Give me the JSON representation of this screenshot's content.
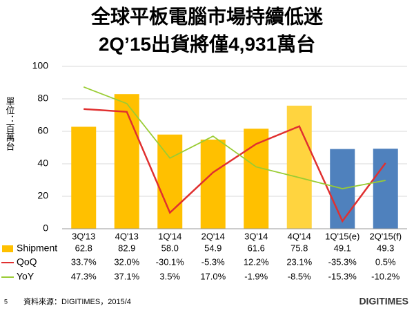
{
  "chart_data": {
    "type": "bar_line",
    "title": "全球平板電腦市場持續低迷",
    "subtitle": "2Q’15出貨將僅4,931萬台",
    "y_label": "單位：百萬台",
    "categories": [
      "3Q'13",
      "4Q'13",
      "1Q'14",
      "2Q'14",
      "3Q'14",
      "4Q'14",
      "1Q'15(e)",
      "2Q'15(f)"
    ],
    "series": [
      {
        "name": "Shipment",
        "color": "#FFC000",
        "colors": [
          "#FFC000",
          "#FFC000",
          "#FFC000",
          "#FFC000",
          "#FFC000",
          "#FFD43F",
          "#4F81BD",
          "#4F81BD"
        ],
        "values": [
          62.8,
          82.9,
          58.0,
          54.9,
          61.6,
          75.8,
          49.1,
          49.3
        ],
        "value_labels": [
          "62.8",
          "82.9",
          "58.0",
          "54.9",
          "61.6",
          "75.8",
          "49.1",
          "49.3"
        ]
      },
      {
        "name": "QoQ",
        "color": "#E03030",
        "axis": "y2",
        "values": [
          33.7,
          32.0,
          -30.1,
          -5.3,
          12.2,
          23.1,
          -35.3,
          0.5
        ],
        "value_labels": [
          "33.7%",
          "32.0%",
          "-30.1%",
          "-5.3%",
          "12.2%",
          "23.1%",
          "-35.3%",
          "0.5%"
        ]
      },
      {
        "name": "YoY",
        "color": "#99CC33",
        "axis": "y2",
        "values": [
          47.3,
          37.1,
          3.5,
          17.0,
          -1.9,
          -8.5,
          -15.3,
          -10.2
        ],
        "value_labels": [
          "47.3%",
          "37.1%",
          "3.5%",
          "17.0%",
          "-1.9%",
          "-8.5%",
          "-15.3%",
          "-10.2%"
        ]
      }
    ],
    "ylim": [
      0,
      100
    ],
    "yticks": [
      0,
      20,
      40,
      60,
      80,
      100
    ],
    "y2lim": [
      -40,
      60
    ],
    "grid": true
  },
  "footer": {
    "page": "5",
    "source": "資料來源：DIGITIMES，2015/4",
    "logo": "DIGITIMES"
  }
}
